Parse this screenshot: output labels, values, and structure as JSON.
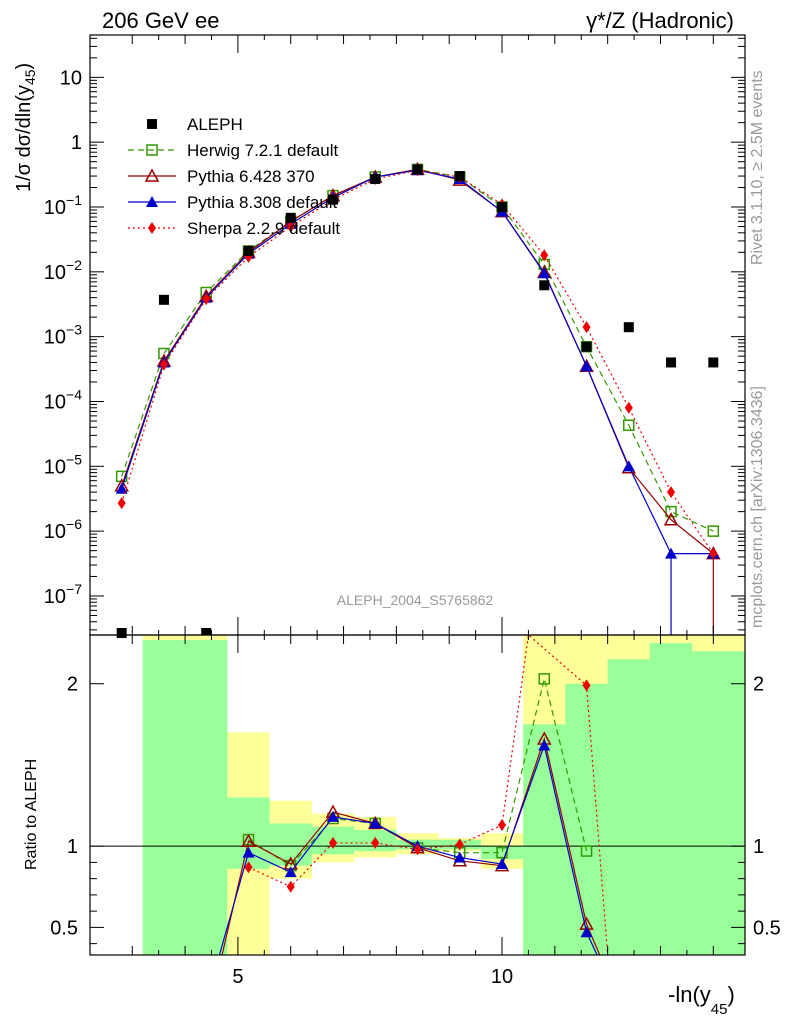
{
  "header": {
    "left": "206 GeV ee",
    "right": "γ*/Z (Hadronic)"
  },
  "side_labels": {
    "rivet": "Rivet 3.1.10, ≥ 2.5M events",
    "mcplots": "mcplots.cern.ch [arXiv:1306.3436]"
  },
  "analysis_id": "ALEPH_2004_S5765862",
  "axis_labels": {
    "y_main": "1/σ  dσ/dln(y",
    "y_main_sub": "45",
    "y_main_end": ")",
    "y_ratio": "Ratio to ALEPH",
    "x": "-ln(y",
    "x_sub": "45",
    "x_end": ")"
  },
  "main_y_ticks": [
    {
      "v": 10.0,
      "label": "10"
    },
    {
      "v": 1.0,
      "label": "1"
    },
    {
      "v": 0.1,
      "base": "10",
      "exp": "−1"
    },
    {
      "v": 0.01,
      "base": "10",
      "exp": "−2"
    },
    {
      "v": 0.001,
      "base": "10",
      "exp": "−3"
    },
    {
      "v": 0.0001,
      "base": "10",
      "exp": "−4"
    },
    {
      "v": 1e-05,
      "base": "10",
      "exp": "−5"
    },
    {
      "v": 1e-06,
      "base": "10",
      "exp": "−6"
    },
    {
      "v": 1e-07,
      "base": "10",
      "exp": "−7"
    }
  ],
  "ratio_y_ticks": [
    {
      "v": 2,
      "label": "2"
    },
    {
      "v": 1,
      "label": "1"
    },
    {
      "v": 0.5,
      "label": "0.5"
    }
  ],
  "x_ticks": [
    {
      "v": 5,
      "label": "5"
    },
    {
      "v": 10,
      "label": "10"
    }
  ],
  "chart_data": {
    "type": "scatter",
    "x_scale": "linear",
    "y_scale": "log",
    "xlim": [
      2.2,
      14.6
    ],
    "ylim": [
      2.5e-08,
      45
    ],
    "ratio_ylim": [
      0.33,
      2.3
    ],
    "legend_placement": "top-left",
    "series": [
      {
        "name": "ALEPH",
        "style": "data",
        "color": "#000000",
        "x": [
          2.8,
          3.6,
          4.4,
          5.2,
          6.0,
          6.8,
          7.6,
          8.4,
          9.2,
          10.0,
          10.8,
          11.6,
          12.4,
          13.2,
          14.0
        ],
        "y": [
          2.5e-08,
          0.0037,
          2.5e-08,
          0.021,
          0.068,
          0.13,
          0.27,
          0.38,
          0.3,
          0.1,
          0.0062,
          0.0007,
          0.0014,
          0.0004,
          0.0004
        ]
      },
      {
        "name": "Herwig 7.2.1 default",
        "style": "dashed",
        "marker": "open-square",
        "color": "#339900",
        "x": [
          2.8,
          3.6,
          4.4,
          5.2,
          6.0,
          6.8,
          7.6,
          8.4,
          9.2,
          10.0,
          10.8,
          11.6,
          12.4,
          13.2,
          14.0
        ],
        "y": [
          7e-06,
          0.00055,
          0.0048,
          0.021,
          0.06,
          0.15,
          0.29,
          0.38,
          0.29,
          0.1,
          0.013,
          0.0007,
          4.3e-05,
          2e-06,
          1e-06
        ]
      },
      {
        "name": "Pythia 6.428 370",
        "style": "solid",
        "marker": "open-triangle",
        "color": "#990000",
        "x": [
          2.8,
          3.6,
          4.4,
          5.2,
          6.0,
          6.8,
          7.6,
          8.4,
          9.2,
          10.0,
          10.8,
          11.6,
          12.4,
          13.2,
          14.0
        ],
        "y": [
          5e-06,
          0.00042,
          0.0042,
          0.02,
          0.06,
          0.15,
          0.29,
          0.38,
          0.26,
          0.085,
          0.0098,
          0.00035,
          9.5e-06,
          1.5e-06,
          4.5e-07
        ]
      },
      {
        "name": "Pythia 8.308 default",
        "style": "solid",
        "marker": "filled-triangle",
        "color": "#0000cc",
        "x": [
          2.8,
          3.6,
          4.4,
          5.2,
          6.0,
          6.8,
          7.6,
          8.4,
          9.2,
          10.0,
          10.8,
          11.6,
          12.4,
          13.2,
          14.0
        ],
        "y": [
          4.5e-06,
          0.0004,
          0.004,
          0.019,
          0.055,
          0.14,
          0.29,
          0.37,
          0.27,
          0.085,
          0.0095,
          0.00035,
          1e-05,
          4.5e-07,
          4.5e-07
        ]
      },
      {
        "name": "Sherpa 2.2.9 default",
        "style": "dotted",
        "marker": "filled-diamond",
        "color": "#ee0000",
        "x": [
          2.8,
          3.6,
          4.4,
          5.2,
          6.0,
          6.8,
          7.6,
          8.4,
          9.2,
          10.0,
          10.8,
          11.6,
          12.4,
          13.2,
          14.0
        ],
        "y": [
          2.7e-06,
          0.00037,
          0.0038,
          0.017,
          0.05,
          0.13,
          0.27,
          0.37,
          0.29,
          0.11,
          0.018,
          0.0014,
          8e-05,
          4e-06,
          4.5e-07
        ]
      }
    ],
    "ratio_series": [
      {
        "name": "Herwig 7.2.1 default",
        "x": [
          5.2,
          6.0,
          6.8,
          7.6,
          8.4,
          9.2,
          10.0,
          10.8,
          11.6
        ],
        "y": [
          1.04,
          0.88,
          1.17,
          1.14,
          0.99,
          0.96,
          0.96,
          2.03,
          0.97
        ]
      },
      {
        "name": "Pythia 6.428 370",
        "x": [
          4.7,
          5.2,
          6.0,
          6.8,
          7.6,
          8.4,
          9.2,
          10.0,
          10.8,
          11.6,
          11.85
        ],
        "y": [
          0.3,
          1.03,
          0.89,
          1.21,
          1.14,
          0.99,
          0.91,
          0.88,
          1.66,
          0.52,
          0.3
        ]
      },
      {
        "name": "Pythia 8.308 default",
        "x": [
          4.65,
          5.2,
          6.0,
          6.8,
          7.6,
          8.4,
          9.2,
          10.0,
          10.8,
          11.6,
          11.8
        ],
        "y": [
          0.3,
          0.96,
          0.84,
          1.18,
          1.14,
          1.0,
          0.93,
          0.89,
          1.62,
          0.47,
          0.3
        ]
      },
      {
        "name": "Sherpa 2.2.9 default",
        "x": [
          5.2,
          6.0,
          6.8,
          7.6,
          8.4,
          9.2,
          10.0,
          10.5,
          11.6,
          12.0
        ],
        "y": [
          0.87,
          0.75,
          1.02,
          1.02,
          0.98,
          1.01,
          1.13,
          2.4,
          1.99,
          0.3
        ]
      }
    ],
    "ratio_bands": {
      "x_edges": [
        3.2,
        4.8,
        5.6,
        6.4,
        7.2,
        8.0,
        8.8,
        9.6,
        10.4,
        11.2,
        12.0,
        12.8,
        13.6,
        14.6
      ],
      "yellow": [
        [
          0.33,
          2.3
        ],
        [
          0.33,
          1.7
        ],
        [
          0.8,
          1.28
        ],
        [
          0.9,
          1.2
        ],
        [
          0.93,
          1.18
        ],
        [
          0.95,
          1.08
        ],
        [
          0.97,
          1.05
        ],
        [
          0.86,
          1.08
        ],
        [
          0.33,
          2.3
        ],
        [
          0.33,
          2.3
        ],
        [
          0.33,
          2.3
        ],
        [
          0.33,
          2.3
        ],
        [
          0.33,
          2.3
        ]
      ],
      "green": [
        [
          0.33,
          2.27
        ],
        [
          0.86,
          1.3
        ],
        [
          0.88,
          1.14
        ],
        [
          0.95,
          1.12
        ],
        [
          0.97,
          1.1
        ],
        [
          0.98,
          1.04
        ],
        [
          0.98,
          1.04
        ],
        [
          0.92,
          1.0
        ],
        [
          0.33,
          1.75
        ],
        [
          0.33,
          2.0
        ],
        [
          0.33,
          2.15
        ],
        [
          0.33,
          2.25
        ],
        [
          0.33,
          2.2
        ]
      ]
    }
  }
}
